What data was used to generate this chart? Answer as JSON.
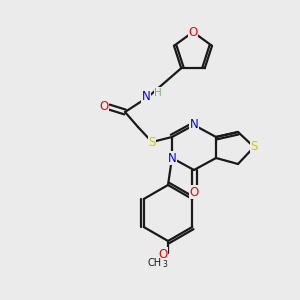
{
  "bg_color": "#ebebeb",
  "bond_color": "#1a1a1a",
  "atom_colors": {
    "O": "#ff0000",
    "N": "#0000ee",
    "S": "#cccc00",
    "H": "#7faa7f",
    "C": "#1a1a1a"
  },
  "figsize": [
    3.0,
    3.0
  ],
  "dpi": 100
}
